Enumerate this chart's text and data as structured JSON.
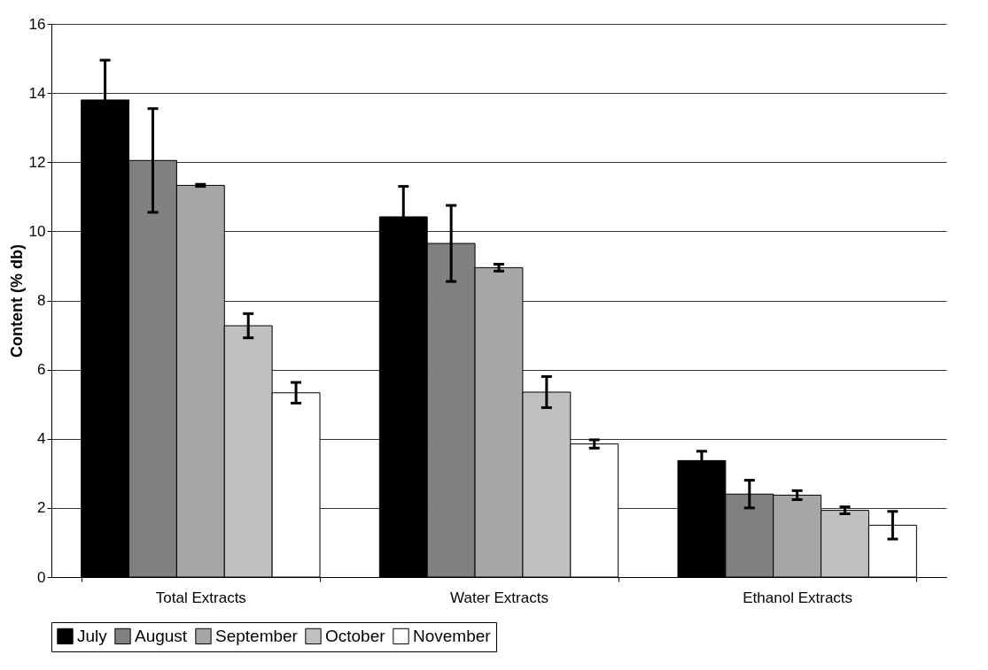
{
  "chart_data": {
    "type": "bar",
    "ylabel": "Content (% db)",
    "categories": [
      "Total Extracts",
      "Water Extracts",
      "Ethanol Extracts"
    ],
    "ylim": [
      0,
      16
    ],
    "yticks": [
      0,
      2,
      4,
      6,
      8,
      10,
      12,
      14,
      16
    ],
    "grid": "y",
    "legend": "bottom",
    "series": [
      {
        "name": "July",
        "color": "#000000",
        "values": [
          13.8,
          10.42,
          3.37
        ],
        "errors": [
          1.15,
          0.88,
          0.27
        ]
      },
      {
        "name": "August",
        "color": "#808080",
        "values": [
          12.05,
          9.65,
          2.4
        ],
        "errors": [
          1.5,
          1.1,
          0.4
        ]
      },
      {
        "name": "September",
        "color": "#a6a6a6",
        "values": [
          11.33,
          8.95,
          2.37
        ],
        "errors": [
          0.03,
          0.1,
          0.13
        ]
      },
      {
        "name": "October",
        "color": "#c0c0c0",
        "values": [
          7.27,
          5.35,
          1.93
        ],
        "errors": [
          0.35,
          0.45,
          0.1
        ]
      },
      {
        "name": "November",
        "color": "#ffffff",
        "values": [
          5.33,
          3.85,
          1.5
        ],
        "errors": [
          0.3,
          0.12,
          0.4
        ]
      }
    ]
  }
}
